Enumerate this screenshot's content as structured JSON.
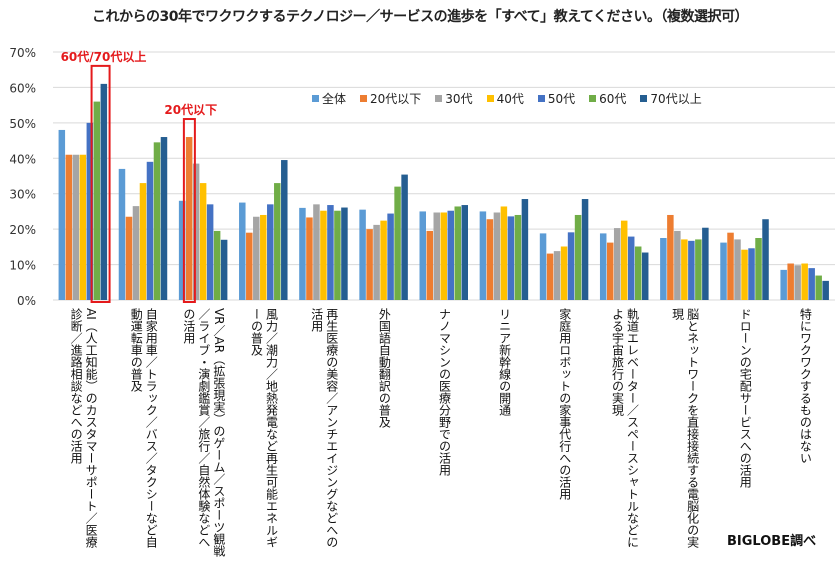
{
  "chart_data": {
    "type": "bar",
    "title": "これからの30年でワクワクするテクノロジー／サービスの進歩を「すべて」教えてください。（複数選択可）",
    "ylim": [
      0,
      70
    ],
    "yticks": [
      "0%",
      "10%",
      "20%",
      "30%",
      "40%",
      "50%",
      "60%",
      "70%"
    ],
    "grid": true,
    "legend_position": "top-right",
    "categories": [
      "AI（人工知能）のカスタマーサポート／医療診断／進路相談などへの活用",
      "自家用車／トラック／バス／タクシーなど自動運転車の普及",
      "VR／AR（拡張現実）のゲーム／スポーツ観戦／ライブ・演劇鑑賞／旅行／自然体験などへの活用",
      "風力／潮力／地熱発電など再生可能エネルギーの普及",
      "再生医療の美容／アンチエイジングなどへの活用",
      "外国語自動翻訳の普及",
      "ナノマシンの医療分野での活用",
      "リニア新幹線の開通",
      "家庭用ロボットの家事代行への活用",
      "軌道エレベーター／スペースシャトルなどによる宇宙旅行の実現",
      "脳とネットワークを直接接続する電脳化の実現",
      "ドローンの宅配サービスへの活用",
      "特にワクワクするものはない"
    ],
    "series": [
      {
        "name": "全体",
        "color": "#5b9bd5",
        "values": [
          48,
          37,
          28,
          27.5,
          26,
          25.5,
          25,
          25,
          18.8,
          18.8,
          17.5,
          16.2,
          8.5
        ]
      },
      {
        "name": "20代以下",
        "color": "#ed7d31",
        "values": [
          41,
          23.5,
          46,
          19,
          23.3,
          20,
          19.5,
          22.8,
          13.1,
          16.2,
          24,
          19,
          10.3
        ]
      },
      {
        "name": "30代",
        "color": "#a5a5a5",
        "values": [
          41,
          26.5,
          38.5,
          23.5,
          27,
          21.2,
          24.7,
          24.7,
          13.8,
          20.3,
          19.5,
          17.1,
          9.8
        ]
      },
      {
        "name": "40代",
        "color": "#ffc000",
        "values": [
          41,
          33,
          33,
          24,
          25.2,
          22.4,
          24.7,
          26.4,
          15.1,
          22.4,
          17.1,
          14.2,
          10.3
        ]
      },
      {
        "name": "50代",
        "color": "#4472c4",
        "values": [
          50,
          39,
          27,
          27,
          26.8,
          24.4,
          25.2,
          23.6,
          19.1,
          17.9,
          16.7,
          14.6,
          9
        ]
      },
      {
        "name": "60代",
        "color": "#70ad47",
        "values": [
          56,
          44.5,
          19.5,
          33,
          25.2,
          32,
          26.4,
          24,
          24,
          15.1,
          17.1,
          17.5,
          6.9
        ]
      },
      {
        "name": "70代以上",
        "color": "#255e91",
        "values": [
          61,
          46,
          17,
          39.5,
          26.1,
          35.4,
          26.8,
          28.5,
          28.5,
          13.4,
          20.4,
          22.8,
          5.4
        ]
      }
    ],
    "annotations": [
      {
        "text": "60代/70代以上",
        "highlight_category": 0,
        "highlight_series": [
          5,
          6
        ],
        "color": "#e41a1c"
      },
      {
        "text": "20代以下",
        "highlight_category": 2,
        "highlight_series": [
          1
        ],
        "color": "#e41a1c"
      }
    ],
    "source": "BIGLOBE調べ"
  }
}
